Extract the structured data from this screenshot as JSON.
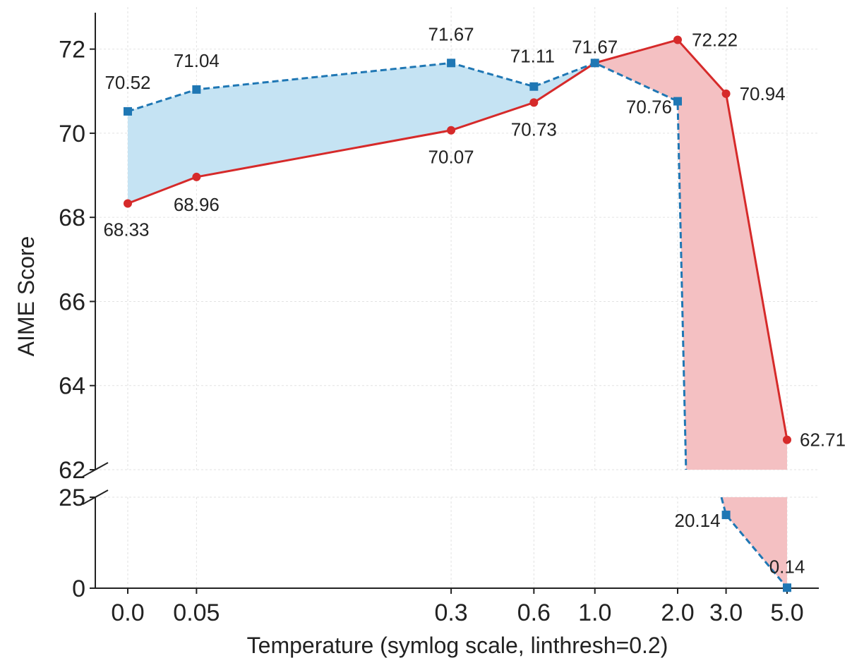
{
  "chart_data": {
    "type": "line",
    "xlabel": "Temperature (symlog scale, linthresh=0.2)",
    "ylabel": "AIME Score",
    "x_scale": "symlog",
    "linthresh": 0.2,
    "x": [
      0.0,
      0.05,
      0.3,
      0.6,
      1.0,
      2.0,
      3.0,
      5.0
    ],
    "x_tick_labels": [
      "0.0",
      "0.05",
      "0.3",
      "0.6",
      "1.0",
      "2.0",
      "3.0",
      "5.0"
    ],
    "broken_y_axis": true,
    "y_upper_ticks": [
      "62",
      "64",
      "66",
      "68",
      "70",
      "72"
    ],
    "y_lower_ticks": [
      "0",
      "25"
    ],
    "ylim_upper": [
      62,
      73
    ],
    "ylim_lower": [
      0,
      25
    ],
    "grid": true,
    "legend": "none",
    "series": [
      {
        "color": "#d62a2a",
        "style": "solid",
        "marker": "circle",
        "values": [
          68.33,
          68.96,
          70.07,
          70.73,
          71.67,
          72.22,
          70.94,
          62.71
        ],
        "labels": [
          "68.33",
          "68.96",
          "70.07",
          "70.73",
          "",
          "72.22",
          "70.94",
          "62.71"
        ]
      },
      {
        "color": "#1f77b4",
        "style": "dashed",
        "marker": "square",
        "values": [
          70.52,
          71.04,
          71.67,
          71.11,
          71.67,
          70.76,
          20.14,
          0.14
        ],
        "labels": [
          "70.52",
          "71.04",
          "71.67",
          "71.11",
          "71.67",
          "70.76",
          "20.14",
          "0.14"
        ]
      }
    ],
    "fill_colors": {
      "blue_above": "#c5e3f3",
      "red_above": "#f4c0c2"
    }
  }
}
